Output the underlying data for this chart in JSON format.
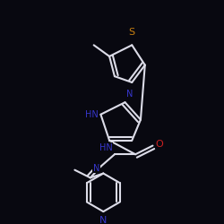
{
  "background_color": "#080810",
  "bond_color": "#dcdce8",
  "heteroatom_colors": {
    "S": "#c88010",
    "N": "#3636cc",
    "O": "#cc2020"
  },
  "figsize": [
    2.5,
    2.5
  ],
  "dpi": 100
}
